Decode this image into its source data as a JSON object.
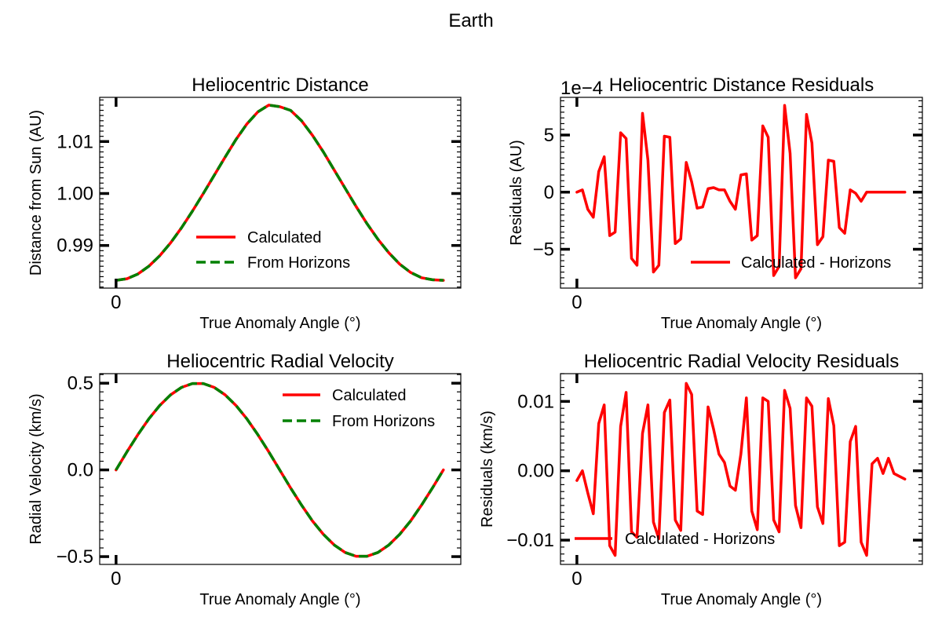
{
  "figure": {
    "title": "Earth"
  },
  "colors": {
    "calculated": "#ff0000",
    "horizons": "#008000"
  },
  "chart_data": [
    {
      "id": "distance",
      "type": "line",
      "title": "Heliocentric Distance",
      "xlabel": "True Anomaly Angle (°)",
      "ylabel": "Distance from Sun (AU)",
      "xlim": [
        -1.5,
        31.6
      ],
      "ylim": [
        0.9818,
        1.0185
      ],
      "xticks": [
        {
          "v": 0,
          "label": "0"
        }
      ],
      "yticks": [
        {
          "v": 0.99,
          "label": "0.99"
        },
        {
          "v": 1.0,
          "label": "1.00"
        },
        {
          "v": 1.01,
          "label": "1.01"
        }
      ],
      "legend": "center-right",
      "series": [
        {
          "name": "Calculated",
          "style": "solid",
          "x": [
            0,
            1,
            2,
            3,
            4,
            5,
            6,
            7,
            8,
            9,
            10,
            11,
            12,
            13,
            14,
            15,
            16,
            17,
            18,
            19,
            20,
            21,
            22,
            23,
            24,
            25,
            26,
            27,
            28,
            29,
            30
          ],
          "y": [
            0.9833,
            0.9836,
            0.9845,
            0.986,
            0.988,
            0.9905,
            0.9934,
            0.9966,
            1.0,
            1.0035,
            1.007,
            1.0104,
            1.0134,
            1.0157,
            1.017,
            1.0167,
            1.016,
            1.014,
            1.0112,
            1.008,
            1.0045,
            1.001,
            0.9975,
            0.9942,
            0.9912,
            0.9886,
            0.9864,
            0.9848,
            0.9838,
            0.9834,
            0.9833
          ]
        },
        {
          "name": "From Horizons",
          "style": "dashed",
          "x": [
            0,
            1,
            2,
            3,
            4,
            5,
            6,
            7,
            8,
            9,
            10,
            11,
            12,
            13,
            14,
            15,
            16,
            17,
            18,
            19,
            20,
            21,
            22,
            23,
            24,
            25,
            26,
            27,
            28,
            29,
            30
          ],
          "y": [
            0.9833,
            0.9836,
            0.9845,
            0.986,
            0.988,
            0.9905,
            0.9934,
            0.9966,
            1.0,
            1.0035,
            1.007,
            1.0104,
            1.0134,
            1.0157,
            1.017,
            1.0167,
            1.016,
            1.014,
            1.0112,
            1.008,
            1.0045,
            1.001,
            0.9975,
            0.9942,
            0.9912,
            0.9886,
            0.9864,
            0.9848,
            0.9838,
            0.9834,
            0.9833
          ]
        }
      ]
    },
    {
      "id": "distance_residuals",
      "type": "line",
      "title": "Heliocentric Distance Residuals",
      "xlabel": "True Anomaly Angle (°)",
      "ylabel": "Residuals (AU)",
      "offset_label": "1e−4",
      "xlim": [
        -1.5,
        31.6
      ],
      "ylim": [
        -8.4,
        8.3
      ],
      "xticks": [
        {
          "v": 0,
          "label": "0"
        }
      ],
      "yticks": [
        {
          "v": -5,
          "label": "−5"
        },
        {
          "v": 0,
          "label": "0"
        },
        {
          "v": 5,
          "label": "5"
        }
      ],
      "legend": "lower-right",
      "series": [
        {
          "name": "Calculated - Horizons",
          "style": "solid",
          "x": [
            0,
            0.5,
            1,
            1.5,
            2,
            2.5,
            3,
            3.5,
            4,
            4.5,
            5,
            5.5,
            6,
            6.5,
            7,
            7.5,
            8,
            8.5,
            9,
            9.5,
            10,
            10.5,
            11,
            11.5,
            12,
            12.5,
            13,
            13.5,
            14,
            14.5,
            15,
            15.5,
            16,
            16.5,
            17,
            17.5,
            18,
            18.5,
            19,
            19.5,
            20,
            20.5,
            21,
            21.5,
            22,
            22.5,
            23,
            23.5,
            24,
            24.5,
            25,
            25.5,
            26,
            26.5,
            27,
            27.5,
            28,
            28.5,
            29,
            29.5,
            30
          ],
          "y": [
            0,
            0.2,
            -1.5,
            -2.2,
            1.8,
            3.1,
            -3.8,
            -3.5,
            5.2,
            4.7,
            -5.8,
            -6.4,
            6.9,
            2.8,
            -7.0,
            -6.4,
            4.9,
            4.8,
            -4.5,
            -4.1,
            2.6,
            0.9,
            -1.4,
            -1.3,
            0.3,
            0.4,
            0.2,
            0.2,
            -0.8,
            -1.5,
            1.5,
            1.6,
            -4.2,
            -3.8,
            5.8,
            4.8,
            -7.3,
            -6.5,
            7.6,
            3.4,
            -7.5,
            -6.7,
            6.8,
            4.3,
            -4.6,
            -3.9,
            2.8,
            2.7,
            -3.1,
            -3.6,
            0.2,
            -0.1,
            -0.8,
            0,
            0,
            0,
            0,
            0,
            0,
            0,
            0
          ]
        }
      ]
    },
    {
      "id": "radial_velocity",
      "type": "line",
      "title": "Heliocentric Radial Velocity",
      "xlabel": "True Anomaly Angle (°)",
      "ylabel": "Radial Velocity (km/s)",
      "xlim": [
        -1.5,
        31.6
      ],
      "ylim": [
        -0.545,
        0.555
      ],
      "xticks": [
        {
          "v": 0,
          "label": "0"
        }
      ],
      "yticks": [
        {
          "v": -0.5,
          "label": "−0.5"
        },
        {
          "v": 0,
          "label": "0.0"
        },
        {
          "v": 0.5,
          "label": "0.5"
        }
      ],
      "legend": "upper-right",
      "series": [
        {
          "name": "Calculated",
          "style": "solid",
          "x": [
            0,
            1,
            2,
            3,
            4,
            5,
            6,
            7,
            8,
            9,
            10,
            11,
            12,
            13,
            14,
            15,
            16,
            17,
            18,
            19,
            20,
            21,
            22,
            23,
            24,
            25,
            26,
            27,
            28,
            29,
            30
          ],
          "y": [
            0,
            0.104,
            0.203,
            0.294,
            0.371,
            0.433,
            0.476,
            0.498,
            0.498,
            0.476,
            0.433,
            0.371,
            0.294,
            0.203,
            0.104,
            0,
            -0.104,
            -0.203,
            -0.294,
            -0.371,
            -0.433,
            -0.476,
            -0.498,
            -0.498,
            -0.476,
            -0.433,
            -0.371,
            -0.294,
            -0.203,
            -0.104,
            0
          ]
        },
        {
          "name": "From Horizons",
          "style": "dashed",
          "x": [
            0,
            1,
            2,
            3,
            4,
            5,
            6,
            7,
            8,
            9,
            10,
            11,
            12,
            13,
            14,
            15,
            16,
            17,
            18,
            19,
            20,
            21,
            22,
            23,
            24,
            25,
            26,
            27,
            28,
            29,
            30
          ],
          "y": [
            0,
            0.104,
            0.203,
            0.294,
            0.371,
            0.433,
            0.476,
            0.498,
            0.498,
            0.476,
            0.433,
            0.371,
            0.294,
            0.203,
            0.104,
            0,
            -0.104,
            -0.203,
            -0.294,
            -0.371,
            -0.433,
            -0.476,
            -0.498,
            -0.498,
            -0.476,
            -0.433,
            -0.371,
            -0.294,
            -0.203,
            -0.104,
            0
          ]
        }
      ]
    },
    {
      "id": "radial_velocity_residuals",
      "type": "line",
      "title": "Heliocentric Radial Velocity Residuals",
      "xlabel": "True Anomaly Angle (°)",
      "ylabel": "Residuals (km/s)",
      "xlim": [
        -1.5,
        31.6
      ],
      "ylim": [
        -0.0135,
        0.014
      ],
      "xticks": [
        {
          "v": 0,
          "label": "0"
        }
      ],
      "yticks": [
        {
          "v": -0.01,
          "label": "−0.01"
        },
        {
          "v": 0,
          "label": "0.00"
        },
        {
          "v": 0.01,
          "label": "0.01"
        }
      ],
      "legend": "lower-left",
      "series": [
        {
          "name": "Calculated - Horizons",
          "style": "solid",
          "x": [
            0,
            0.5,
            1,
            1.5,
            2,
            2.5,
            3,
            3.5,
            4,
            4.5,
            5,
            5.5,
            6,
            6.5,
            7,
            7.5,
            8,
            8.5,
            9,
            9.5,
            10,
            10.5,
            11,
            11.5,
            12,
            12.5,
            13,
            13.5,
            14,
            14.5,
            15,
            15.5,
            16,
            16.5,
            17,
            17.5,
            18,
            18.5,
            19,
            19.5,
            20,
            20.5,
            21,
            21.5,
            22,
            22.5,
            23,
            23.5,
            24,
            24.5,
            25,
            25.5,
            26,
            26.5,
            27,
            27.5,
            28,
            28.5,
            29,
            29.5,
            30
          ],
          "y": [
            -0.0014,
            0.0,
            -0.0032,
            -0.0062,
            0.0068,
            0.0095,
            -0.0108,
            -0.0122,
            0.0064,
            0.0113,
            -0.0088,
            -0.0096,
            0.0054,
            0.0095,
            -0.0074,
            -0.0098,
            0.0084,
            0.0102,
            -0.0071,
            -0.0086,
            0.0126,
            0.011,
            -0.0058,
            -0.0063,
            0.0092,
            0.006,
            0.0024,
            0.0012,
            -0.0022,
            -0.0028,
            0.0024,
            0.0105,
            -0.0058,
            -0.0085,
            0.0105,
            0.01,
            -0.0071,
            -0.0088,
            0.0116,
            0.009,
            -0.005,
            -0.0082,
            0.0105,
            0.0093,
            -0.0052,
            -0.0076,
            0.0104,
            0.0065,
            -0.0108,
            -0.0103,
            0.0042,
            0.0064,
            -0.0103,
            -0.0122,
            0.001,
            0.0018,
            -0.0004,
            0.0018,
            -0.0004,
            -0.0008,
            -0.0012
          ]
        }
      ]
    }
  ]
}
